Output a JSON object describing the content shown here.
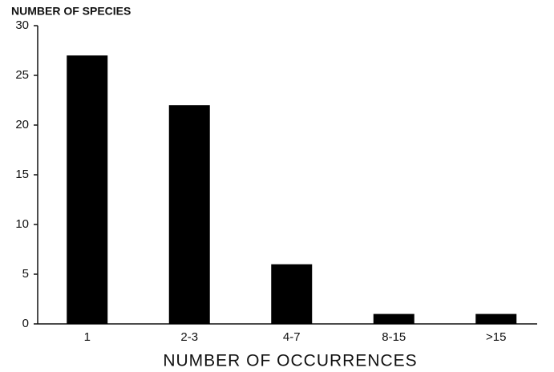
{
  "chart_data": {
    "type": "bar",
    "y_label": "NUMBER OF SPECIES",
    "x_label": "NUMBER OF OCCURRENCES",
    "categories": [
      "1",
      "2-3",
      "4-7",
      "8-15",
      ">15"
    ],
    "values": [
      27,
      22,
      6,
      1,
      1
    ],
    "color": "#000000",
    "ylim": [
      0,
      30
    ],
    "yticks": [
      0,
      5,
      10,
      15,
      20,
      25,
      30
    ],
    "grid": false
  }
}
